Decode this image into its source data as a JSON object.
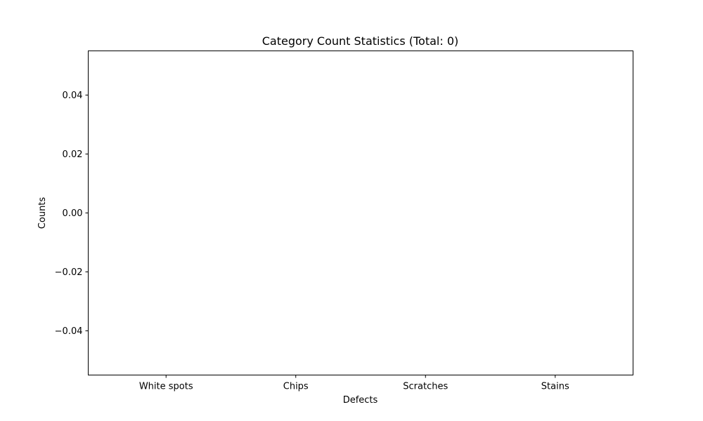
{
  "chart_data": {
    "type": "bar",
    "title": "Category Count Statistics (Total: 0)",
    "xlabel": "Defects",
    "ylabel": "Counts",
    "categories": [
      "White spots",
      "Chips",
      "Scratches",
      "Stains"
    ],
    "values": [
      0,
      0,
      0,
      0
    ],
    "ylim": [
      -0.055,
      0.055
    ],
    "yticks": [
      0.04,
      0.02,
      0.0,
      -0.02,
      -0.04
    ],
    "ytick_labels": [
      "0.04",
      "0.02",
      "0.00",
      "−0.02",
      "−0.04"
    ],
    "grid": false,
    "legend": "none",
    "colors": {
      "background": "#ffffff",
      "axes": "#000000",
      "bar": "#1f77b4"
    }
  }
}
